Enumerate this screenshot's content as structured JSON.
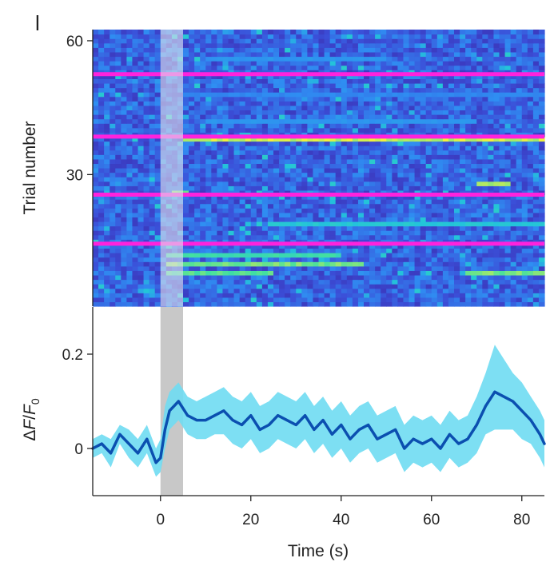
{
  "panel_label": "l",
  "chart_data": [
    {
      "type": "heatmap",
      "ylabel": "Trial number",
      "yticks": [
        30,
        60
      ],
      "ylim": [
        1,
        62
      ],
      "xlim": [
        -15,
        85
      ],
      "stimulus_window": [
        0,
        5
      ],
      "trial_separators": [
        14.5,
        25.5,
        38.5,
        52.5
      ],
      "separator_color": "#ff22dd",
      "colormap": [
        "#3a1f9e",
        "#3b4fd8",
        "#2f8ef2",
        "#23c4d9",
        "#43e0a0",
        "#f5f03c"
      ],
      "hot_streaks": [
        {
          "trial": 38,
          "x": [
            5,
            85
          ],
          "level": 1.0
        },
        {
          "trial": 28,
          "x": [
            70,
            78
          ],
          "level": 0.95
        },
        {
          "trial": 26,
          "x": [
            3,
            6
          ],
          "level": 0.9
        },
        {
          "trial": 19,
          "x": [
            25,
            85
          ],
          "level": 0.65
        },
        {
          "trial": 12,
          "x": [
            1,
            40
          ],
          "level": 0.8
        },
        {
          "trial": 10,
          "x": [
            1,
            45
          ],
          "level": 0.9
        },
        {
          "trial": 8,
          "x": [
            1,
            25
          ],
          "level": 0.85
        },
        {
          "trial": 8,
          "x": [
            68,
            85
          ],
          "level": 0.9
        },
        {
          "trial": 42,
          "x": [
            10,
            70
          ],
          "level": 0.45
        },
        {
          "trial": 48,
          "x": [
            5,
            85
          ],
          "level": 0.4
        },
        {
          "trial": 56,
          "x": [
            10,
            50
          ],
          "level": 0.45
        }
      ]
    },
    {
      "type": "line",
      "ylabel": "ΔF/F0",
      "xlabel": "Time (s)",
      "xlim": [
        -15,
        85
      ],
      "ylim": [
        -0.1,
        0.3
      ],
      "xticks": [
        0,
        20,
        40,
        60,
        80
      ],
      "yticks": [
        0,
        0.2
      ],
      "ytick_labels": [
        "0",
        "0.2"
      ],
      "stimulus_window": [
        0,
        5
      ],
      "line_color": "#0b4fb0",
      "band_color": "#6fdcf2",
      "x": [
        -15,
        -13,
        -11,
        -9,
        -7,
        -5,
        -3,
        -1,
        0,
        1,
        2,
        3,
        4,
        6,
        8,
        10,
        12,
        14,
        16,
        18,
        20,
        22,
        24,
        26,
        28,
        30,
        32,
        34,
        36,
        38,
        40,
        42,
        44,
        46,
        48,
        50,
        52,
        54,
        56,
        58,
        60,
        62,
        64,
        66,
        68,
        70,
        72,
        74,
        76,
        78,
        80,
        82,
        84,
        85
      ],
      "mean": [
        0.0,
        0.01,
        -0.01,
        0.03,
        0.01,
        -0.01,
        0.02,
        -0.03,
        -0.02,
        0.04,
        0.08,
        0.09,
        0.1,
        0.07,
        0.06,
        0.06,
        0.07,
        0.08,
        0.06,
        0.05,
        0.07,
        0.04,
        0.05,
        0.07,
        0.06,
        0.05,
        0.07,
        0.04,
        0.06,
        0.03,
        0.05,
        0.02,
        0.04,
        0.05,
        0.02,
        0.03,
        0.04,
        0.0,
        0.02,
        0.01,
        0.02,
        0.0,
        0.03,
        0.01,
        0.02,
        0.05,
        0.09,
        0.12,
        0.11,
        0.1,
        0.08,
        0.06,
        0.03,
        0.01
      ],
      "upper": [
        0.02,
        0.03,
        0.02,
        0.05,
        0.04,
        0.02,
        0.05,
        0.0,
        0.02,
        0.09,
        0.12,
        0.13,
        0.14,
        0.11,
        0.1,
        0.11,
        0.12,
        0.13,
        0.11,
        0.1,
        0.12,
        0.09,
        0.1,
        0.12,
        0.11,
        0.1,
        0.12,
        0.09,
        0.11,
        0.08,
        0.1,
        0.07,
        0.09,
        0.1,
        0.07,
        0.08,
        0.09,
        0.05,
        0.07,
        0.06,
        0.07,
        0.05,
        0.08,
        0.06,
        0.07,
        0.11,
        0.16,
        0.22,
        0.19,
        0.16,
        0.14,
        0.11,
        0.08,
        0.06
      ],
      "lower": [
        -0.02,
        -0.01,
        -0.04,
        0.01,
        -0.02,
        -0.04,
        -0.01,
        -0.06,
        -0.05,
        0.0,
        0.04,
        0.05,
        0.06,
        0.03,
        0.02,
        0.02,
        0.03,
        0.03,
        0.01,
        0.0,
        0.02,
        -0.01,
        0.0,
        0.02,
        0.01,
        0.0,
        0.02,
        -0.01,
        0.01,
        -0.02,
        0.0,
        -0.03,
        -0.01,
        0.0,
        -0.03,
        -0.02,
        -0.01,
        -0.05,
        -0.03,
        -0.04,
        -0.03,
        -0.05,
        -0.02,
        -0.04,
        -0.03,
        -0.01,
        0.03,
        0.04,
        0.04,
        0.04,
        0.02,
        0.01,
        -0.02,
        -0.04
      ]
    }
  ]
}
